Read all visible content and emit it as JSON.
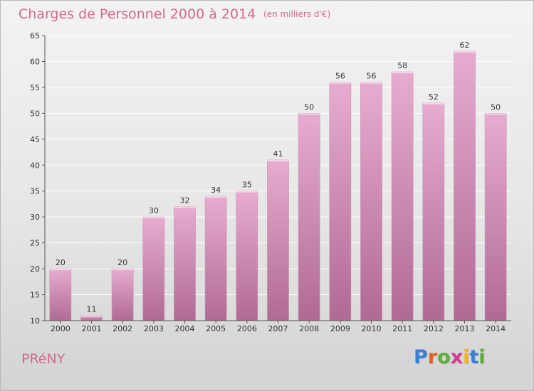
{
  "header": {
    "title": "Charges de Personnel 2000 à 2014",
    "subtitle": "(en milliers d'€)"
  },
  "footer": {
    "town": "PRéNY",
    "logo_text": "Proxiti",
    "logo_letter_colors": [
      "#3a7fd5",
      "#e2612a",
      "#5ab035",
      "#d63b8f",
      "#f2b319",
      "#3a7fd5",
      "#5ab035"
    ]
  },
  "colors": {
    "bar_top": "#e8acd0",
    "bar_bottom": "#b06a94",
    "accent": "#d16a8e",
    "grid": "#ffffff"
  },
  "chart_data": {
    "type": "bar",
    "title": "Charges de Personnel 2000 à 2014",
    "subtitle": "(en milliers d'€)",
    "categories": [
      "2000",
      "2001",
      "2002",
      "2003",
      "2004",
      "2005",
      "2006",
      "2007",
      "2008",
      "2009",
      "2010",
      "2011",
      "2012",
      "2013",
      "2014"
    ],
    "values": [
      20,
      11,
      20,
      30,
      32,
      34,
      35,
      41,
      50,
      56,
      56,
      58,
      52,
      62,
      50
    ],
    "ylim": [
      10,
      65
    ],
    "yticks": [
      10,
      15,
      20,
      25,
      30,
      35,
      40,
      45,
      50,
      55,
      60,
      65
    ],
    "grid": true,
    "data_labels": true,
    "xlabel": "",
    "ylabel": ""
  }
}
